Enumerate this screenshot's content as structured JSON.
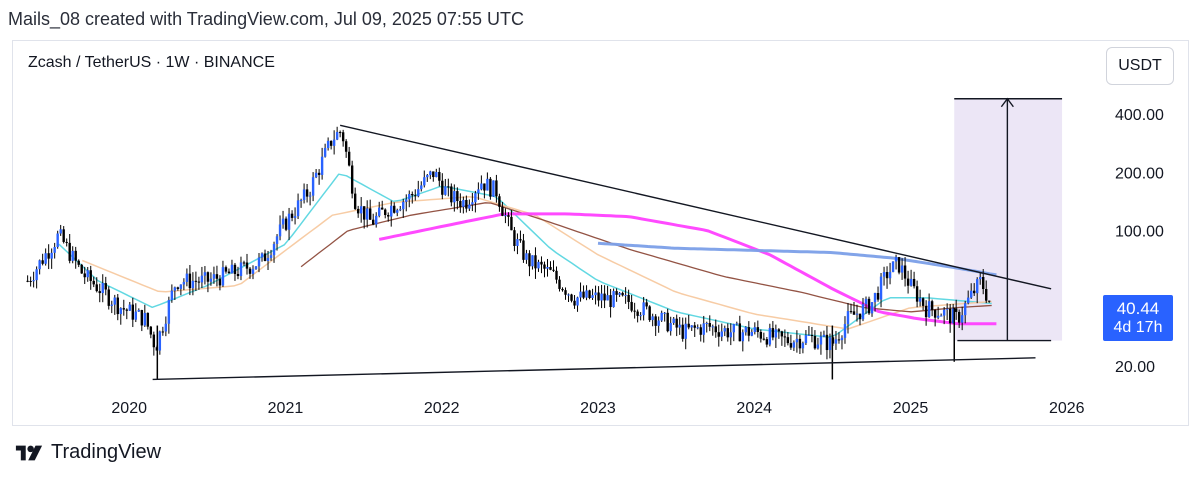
{
  "caption": "Mails_08 created with TradingView.com, Jul 09, 2025 07:55 UTC",
  "brand": "TradingView",
  "currency_button": "USDT",
  "price_tag": {
    "price": "40.44",
    "countdown": "4d 17h"
  },
  "colors": {
    "candles": "#000000",
    "candle_accent": "#2962ff",
    "ema_fast": "#5ad6e0",
    "ema_mid": "#f7c9a0",
    "ema_slow": "#8d4a3a",
    "ma_magenta": "#ff40ff",
    "ma_blue": "#7b9fe8",
    "target_box": "#ece6f6",
    "price_tag": "#2962ff"
  },
  "chart_data": {
    "type": "candlestick",
    "title": "Zcash / TetherUS · 1W · BINANCE",
    "scale": "log",
    "ylim": [
      15,
      600
    ],
    "xlim": [
      2019.25,
      2026.2
    ],
    "y_ticks": [
      {
        "value": 400,
        "label": "400.00"
      },
      {
        "value": 200,
        "label": "200.00"
      },
      {
        "value": 100,
        "label": "100.00"
      },
      {
        "value": 20,
        "label": "20.00"
      }
    ],
    "x_ticks": [
      {
        "value": 2020,
        "label": "2020"
      },
      {
        "value": 2021,
        "label": "2021"
      },
      {
        "value": 2022,
        "label": "2022"
      },
      {
        "value": 2023,
        "label": "2023"
      },
      {
        "value": 2024,
        "label": "2024"
      },
      {
        "value": 2025,
        "label": "2025"
      },
      {
        "value": 2026,
        "label": "2026"
      }
    ],
    "anchors": [
      [
        2019.35,
        55
      ],
      [
        2019.55,
        95
      ],
      [
        2019.7,
        60
      ],
      [
        2019.95,
        40
      ],
      [
        2020.1,
        35
      ],
      [
        2020.17,
        25
      ],
      [
        2020.3,
        55
      ],
      [
        2020.5,
        55
      ],
      [
        2020.7,
        62
      ],
      [
        2020.85,
        70
      ],
      [
        2021.0,
        110
      ],
      [
        2021.15,
        160
      ],
      [
        2021.3,
        300
      ],
      [
        2021.36,
        330
      ],
      [
        2021.45,
        140
      ],
      [
        2021.55,
        110
      ],
      [
        2021.65,
        130
      ],
      [
        2021.8,
        150
      ],
      [
        2021.95,
        200
      ],
      [
        2022.05,
        150
      ],
      [
        2022.15,
        140
      ],
      [
        2022.25,
        180
      ],
      [
        2022.35,
        160
      ],
      [
        2022.45,
        95
      ],
      [
        2022.55,
        70
      ],
      [
        2022.7,
        60
      ],
      [
        2022.85,
        45
      ],
      [
        2023.0,
        45
      ],
      [
        2023.2,
        43
      ],
      [
        2023.4,
        35
      ],
      [
        2023.55,
        30
      ],
      [
        2023.7,
        32
      ],
      [
        2023.85,
        30
      ],
      [
        2024.0,
        30
      ],
      [
        2024.2,
        27
      ],
      [
        2024.35,
        28
      ],
      [
        2024.5,
        26
      ],
      [
        2024.6,
        35
      ],
      [
        2024.75,
        42
      ],
      [
        2024.85,
        60
      ],
      [
        2024.92,
        68
      ],
      [
        2025.0,
        52
      ],
      [
        2025.1,
        40
      ],
      [
        2025.2,
        38
      ],
      [
        2025.3,
        35
      ],
      [
        2025.38,
        45
      ],
      [
        2025.45,
        55
      ],
      [
        2025.52,
        40.44
      ]
    ],
    "indicators": [
      {
        "name": "EMA fast",
        "points": [
          [
            2019.55,
            85
          ],
          [
            2019.8,
            55
          ],
          [
            2020.15,
            40
          ],
          [
            2020.5,
            52
          ],
          [
            2021.0,
            85
          ],
          [
            2021.35,
            200
          ],
          [
            2021.7,
            140
          ],
          [
            2022.0,
            170
          ],
          [
            2022.35,
            150
          ],
          [
            2022.7,
            80
          ],
          [
            2023.0,
            55
          ],
          [
            2023.5,
            38
          ],
          [
            2024.0,
            31
          ],
          [
            2024.5,
            28
          ],
          [
            2024.85,
            45
          ],
          [
            2025.1,
            45
          ],
          [
            2025.52,
            42
          ]
        ]
      },
      {
        "name": "EMA mid",
        "points": [
          [
            2019.7,
            70
          ],
          [
            2020.2,
            48
          ],
          [
            2020.7,
            52
          ],
          [
            2021.3,
            120
          ],
          [
            2021.7,
            140
          ],
          [
            2022.2,
            150
          ],
          [
            2022.6,
            120
          ],
          [
            2023.0,
            75
          ],
          [
            2023.5,
            48
          ],
          [
            2024.0,
            37
          ],
          [
            2024.6,
            31
          ],
          [
            2025.0,
            40
          ],
          [
            2025.52,
            43
          ]
        ]
      },
      {
        "name": "EMA slow",
        "points": [
          [
            2021.1,
            65
          ],
          [
            2021.4,
            100
          ],
          [
            2021.8,
            120
          ],
          [
            2022.3,
            140
          ],
          [
            2022.7,
            110
          ],
          [
            2023.2,
            80
          ],
          [
            2023.8,
            58
          ],
          [
            2024.3,
            48
          ],
          [
            2024.7,
            40
          ],
          [
            2025.0,
            38
          ],
          [
            2025.3,
            40
          ],
          [
            2025.52,
            41
          ]
        ]
      },
      {
        "name": "MA magenta",
        "points": [
          [
            2021.6,
            90
          ],
          [
            2022.0,
            105
          ],
          [
            2022.4,
            122
          ],
          [
            2022.8,
            122
          ],
          [
            2023.2,
            118
          ],
          [
            2023.7,
            100
          ],
          [
            2024.1,
            75
          ],
          [
            2024.5,
            50
          ],
          [
            2024.8,
            38
          ],
          [
            2025.05,
            35
          ],
          [
            2025.3,
            33
          ],
          [
            2025.55,
            33
          ]
        ]
      },
      {
        "name": "MA blue",
        "points": [
          [
            2023.0,
            86
          ],
          [
            2023.5,
            81
          ],
          [
            2024.0,
            79
          ],
          [
            2024.5,
            77
          ],
          [
            2024.9,
            72
          ],
          [
            2025.3,
            64
          ],
          [
            2025.55,
            59
          ]
        ]
      }
    ],
    "trendlines": [
      {
        "name": "resistance",
        "from": [
          2021.35,
          350
        ],
        "to": [
          2025.9,
          50
        ]
      },
      {
        "name": "support",
        "from": [
          2020.15,
          17
        ],
        "to": [
          2025.8,
          22
        ]
      },
      {
        "name": "level",
        "from": [
          2025.3,
          27
        ],
        "to": [
          2025.9,
          27
        ]
      }
    ],
    "target_zone": {
      "x0": 2025.28,
      "x1": 2025.97,
      "y0": 27,
      "y1": 480
    },
    "projection_arrow": {
      "x": 2025.62,
      "from": 27,
      "to": 480
    }
  }
}
